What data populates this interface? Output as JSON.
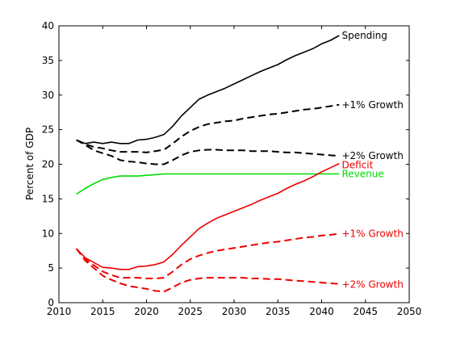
{
  "chart_data": {
    "type": "line",
    "ylabel": "Percent of GDP",
    "xlabel": "",
    "xlim": [
      2010,
      2050
    ],
    "ylim": [
      0,
      40
    ],
    "xticks": [
      2010,
      2015,
      2020,
      2025,
      2030,
      2035,
      2040,
      2045,
      2050
    ],
    "yticks": [
      0,
      5,
      10,
      15,
      20,
      25,
      30,
      35,
      40
    ],
    "grid": false,
    "series": [
      {
        "name": "Spending",
        "color": "#000000",
        "style": "solid",
        "points": [
          [
            2012,
            23.5
          ],
          [
            2013,
            23.0
          ],
          [
            2014,
            23.2
          ],
          [
            2015,
            23.0
          ],
          [
            2016,
            23.2
          ],
          [
            2017,
            23.0
          ],
          [
            2018,
            23.0
          ],
          [
            2019,
            23.5
          ],
          [
            2020,
            23.6
          ],
          [
            2021,
            23.9
          ],
          [
            2022,
            24.3
          ],
          [
            2023,
            25.5
          ],
          [
            2024,
            27.0
          ],
          [
            2025,
            28.2
          ],
          [
            2026,
            29.4
          ],
          [
            2027,
            30.0
          ],
          [
            2028,
            30.5
          ],
          [
            2029,
            31.0
          ],
          [
            2030,
            31.6
          ],
          [
            2031,
            32.2
          ],
          [
            2032,
            32.8
          ],
          [
            2033,
            33.4
          ],
          [
            2034,
            33.9
          ],
          [
            2035,
            34.4
          ],
          [
            2036,
            35.1
          ],
          [
            2037,
            35.7
          ],
          [
            2038,
            36.2
          ],
          [
            2039,
            36.7
          ],
          [
            2040,
            37.4
          ],
          [
            2041,
            37.9
          ],
          [
            2042,
            38.6
          ]
        ]
      },
      {
        "name": "+1% Growth",
        "color": "#000000",
        "style": "dashed",
        "points": [
          [
            2012,
            23.5
          ],
          [
            2013,
            22.9
          ],
          [
            2014,
            22.5
          ],
          [
            2015,
            22.3
          ],
          [
            2016,
            22.0
          ],
          [
            2017,
            21.8
          ],
          [
            2018,
            21.8
          ],
          [
            2019,
            21.8
          ],
          [
            2020,
            21.7
          ],
          [
            2021,
            21.9
          ],
          [
            2022,
            22.1
          ],
          [
            2023,
            23.0
          ],
          [
            2024,
            24.0
          ],
          [
            2025,
            24.8
          ],
          [
            2026,
            25.4
          ],
          [
            2027,
            25.8
          ],
          [
            2028,
            26.0
          ],
          [
            2029,
            26.2
          ],
          [
            2030,
            26.3
          ],
          [
            2031,
            26.6
          ],
          [
            2032,
            26.8
          ],
          [
            2033,
            27.0
          ],
          [
            2034,
            27.2
          ],
          [
            2035,
            27.3
          ],
          [
            2036,
            27.5
          ],
          [
            2037,
            27.7
          ],
          [
            2038,
            27.9
          ],
          [
            2039,
            28.0
          ],
          [
            2040,
            28.2
          ],
          [
            2041,
            28.4
          ],
          [
            2042,
            28.6
          ]
        ]
      },
      {
        "name": "+2% Growth",
        "color": "#000000",
        "style": "dashed",
        "points": [
          [
            2012,
            23.5
          ],
          [
            2013,
            22.8
          ],
          [
            2014,
            22.0
          ],
          [
            2015,
            21.6
          ],
          [
            2016,
            21.2
          ],
          [
            2017,
            20.6
          ],
          [
            2018,
            20.4
          ],
          [
            2019,
            20.3
          ],
          [
            2020,
            20.1
          ],
          [
            2021,
            20.0
          ],
          [
            2022,
            20.0
          ],
          [
            2023,
            20.6
          ],
          [
            2024,
            21.3
          ],
          [
            2025,
            21.8
          ],
          [
            2026,
            22.0
          ],
          [
            2027,
            22.1
          ],
          [
            2028,
            22.1
          ],
          [
            2029,
            22.0
          ],
          [
            2030,
            22.0
          ],
          [
            2031,
            22.0
          ],
          [
            2032,
            21.9
          ],
          [
            2033,
            21.9
          ],
          [
            2034,
            21.9
          ],
          [
            2035,
            21.8
          ],
          [
            2036,
            21.7
          ],
          [
            2037,
            21.7
          ],
          [
            2038,
            21.6
          ],
          [
            2039,
            21.5
          ],
          [
            2040,
            21.4
          ],
          [
            2041,
            21.3
          ],
          [
            2042,
            21.2
          ]
        ]
      },
      {
        "name": "Revenue",
        "color": "#00dd00",
        "style": "solid",
        "points": [
          [
            2012,
            15.7
          ],
          [
            2013,
            16.5
          ],
          [
            2014,
            17.2
          ],
          [
            2015,
            17.8
          ],
          [
            2016,
            18.1
          ],
          [
            2017,
            18.3
          ],
          [
            2018,
            18.3
          ],
          [
            2019,
            18.3
          ],
          [
            2020,
            18.4
          ],
          [
            2021,
            18.5
          ],
          [
            2022,
            18.6
          ],
          [
            2025,
            18.6
          ],
          [
            2030,
            18.6
          ],
          [
            2035,
            18.6
          ],
          [
            2040,
            18.6
          ],
          [
            2042,
            18.6
          ]
        ]
      },
      {
        "name": "Deficit",
        "color": "#ee0000",
        "style": "solid",
        "points": [
          [
            2012,
            7.8
          ],
          [
            2013,
            6.5
          ],
          [
            2014,
            5.8
          ],
          [
            2015,
            5.1
          ],
          [
            2016,
            5.0
          ],
          [
            2017,
            4.8
          ],
          [
            2018,
            4.8
          ],
          [
            2019,
            5.2
          ],
          [
            2020,
            5.3
          ],
          [
            2021,
            5.5
          ],
          [
            2022,
            5.9
          ],
          [
            2023,
            7.0
          ],
          [
            2024,
            8.3
          ],
          [
            2025,
            9.5
          ],
          [
            2026,
            10.7
          ],
          [
            2027,
            11.5
          ],
          [
            2028,
            12.2
          ],
          [
            2029,
            12.7
          ],
          [
            2030,
            13.2
          ],
          [
            2031,
            13.7
          ],
          [
            2032,
            14.2
          ],
          [
            2033,
            14.8
          ],
          [
            2034,
            15.3
          ],
          [
            2035,
            15.8
          ],
          [
            2036,
            16.5
          ],
          [
            2037,
            17.1
          ],
          [
            2038,
            17.6
          ],
          [
            2039,
            18.2
          ],
          [
            2040,
            18.9
          ],
          [
            2041,
            19.5
          ],
          [
            2042,
            20.1
          ]
        ]
      },
      {
        "name": "+1% Growth",
        "color": "#ee0000",
        "style": "dashed",
        "points": [
          [
            2012,
            7.8
          ],
          [
            2013,
            6.3
          ],
          [
            2014,
            5.4
          ],
          [
            2015,
            4.5
          ],
          [
            2016,
            4.0
          ],
          [
            2017,
            3.6
          ],
          [
            2018,
            3.6
          ],
          [
            2019,
            3.6
          ],
          [
            2020,
            3.5
          ],
          [
            2021,
            3.5
          ],
          [
            2022,
            3.6
          ],
          [
            2023,
            4.5
          ],
          [
            2024,
            5.5
          ],
          [
            2025,
            6.3
          ],
          [
            2026,
            6.8
          ],
          [
            2027,
            7.2
          ],
          [
            2028,
            7.5
          ],
          [
            2029,
            7.7
          ],
          [
            2030,
            7.9
          ],
          [
            2031,
            8.1
          ],
          [
            2032,
            8.3
          ],
          [
            2033,
            8.5
          ],
          [
            2034,
            8.7
          ],
          [
            2035,
            8.8
          ],
          [
            2036,
            9.0
          ],
          [
            2037,
            9.2
          ],
          [
            2038,
            9.4
          ],
          [
            2039,
            9.5
          ],
          [
            2040,
            9.7
          ],
          [
            2041,
            9.8
          ],
          [
            2042,
            10.0
          ]
        ]
      },
      {
        "name": "+2% Growth",
        "color": "#ee0000",
        "style": "dashed",
        "points": [
          [
            2012,
            7.8
          ],
          [
            2013,
            6.1
          ],
          [
            2014,
            5.0
          ],
          [
            2015,
            3.9
          ],
          [
            2016,
            3.3
          ],
          [
            2017,
            2.8
          ],
          [
            2018,
            2.4
          ],
          [
            2019,
            2.2
          ],
          [
            2020,
            2.0
          ],
          [
            2021,
            1.7
          ],
          [
            2022,
            1.6
          ],
          [
            2023,
            2.2
          ],
          [
            2024,
            2.9
          ],
          [
            2025,
            3.3
          ],
          [
            2026,
            3.5
          ],
          [
            2027,
            3.6
          ],
          [
            2028,
            3.6
          ],
          [
            2029,
            3.6
          ],
          [
            2030,
            3.6
          ],
          [
            2031,
            3.6
          ],
          [
            2032,
            3.5
          ],
          [
            2033,
            3.5
          ],
          [
            2034,
            3.4
          ],
          [
            2035,
            3.4
          ],
          [
            2036,
            3.3
          ],
          [
            2037,
            3.2
          ],
          [
            2038,
            3.1
          ],
          [
            2039,
            3.0
          ],
          [
            2040,
            2.9
          ],
          [
            2041,
            2.8
          ],
          [
            2042,
            2.7
          ]
        ]
      }
    ],
    "annotations": [
      {
        "text": "Spending",
        "x": 2042.3,
        "y": 38.6,
        "color": "#000000"
      },
      {
        "text": "+1% Growth",
        "x": 2042.3,
        "y": 28.6,
        "color": "#000000"
      },
      {
        "text": "+2% Growth",
        "x": 2042.3,
        "y": 21.2,
        "color": "#000000"
      },
      {
        "text": "Deficit",
        "x": 2042.3,
        "y": 19.9,
        "color": "#ee0000"
      },
      {
        "text": "Revenue",
        "x": 2042.3,
        "y": 18.6,
        "color": "#00dd00"
      },
      {
        "text": "+1% Growth",
        "x": 2042.3,
        "y": 10.0,
        "color": "#ee0000"
      },
      {
        "text": "+2% Growth",
        "x": 2042.3,
        "y": 2.6,
        "color": "#ee0000"
      }
    ]
  }
}
